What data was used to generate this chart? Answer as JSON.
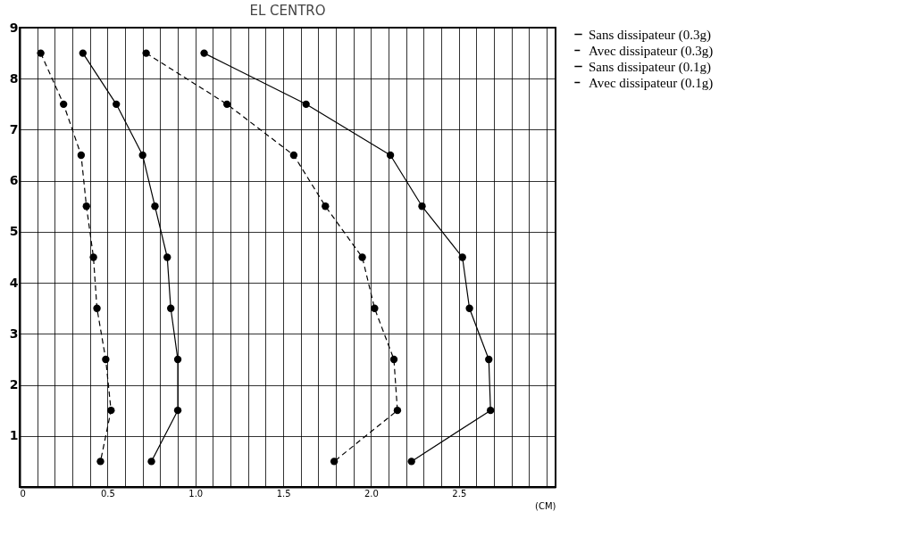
{
  "chart_data": {
    "type": "line",
    "title": "EL CENTRO",
    "xlabel": "(CM)",
    "xlim": [
      0,
      3.05
    ],
    "ylim": [
      0,
      9
    ],
    "xticks": [
      0,
      {
        "value": 0.1,
        "label": null
      },
      {
        "value": 0.2,
        "label": null
      },
      {
        "value": 0.3,
        "label": null
      },
      {
        "value": 0.4,
        "label": null
      },
      {
        "value": 0.5,
        "label": "0.5"
      },
      {
        "value": 0.6,
        "label": null
      },
      {
        "value": 0.7,
        "label": null
      },
      {
        "value": 0.8,
        "label": null
      },
      {
        "value": 0.9,
        "label": null
      },
      {
        "value": 1.0,
        "label": "1.0"
      },
      {
        "value": 1.1,
        "label": null
      },
      {
        "value": 1.2,
        "label": null
      },
      {
        "value": 1.3,
        "label": null
      },
      {
        "value": 1.4,
        "label": null
      },
      {
        "value": 1.5,
        "label": "1.5"
      },
      {
        "value": 1.6,
        "label": null
      },
      {
        "value": 1.7,
        "label": null
      },
      {
        "value": 1.8,
        "label": null
      },
      {
        "value": 1.9,
        "label": null
      },
      {
        "value": 2.0,
        "label": "2.0"
      },
      {
        "value": 2.1,
        "label": null
      },
      {
        "value": 2.2,
        "label": null
      },
      {
        "value": 2.3,
        "label": null
      },
      {
        "value": 2.4,
        "label": null
      },
      {
        "value": 2.5,
        "label": "2.5"
      },
      {
        "value": 2.6,
        "label": null
      },
      {
        "value": 2.7,
        "label": null
      },
      {
        "value": 2.8,
        "label": null
      },
      {
        "value": 2.9,
        "label": null
      },
      {
        "value": 3.0,
        "label": null
      }
    ],
    "yticks": [
      1,
      2,
      3,
      4,
      5,
      6,
      7,
      8,
      9
    ],
    "grid": true,
    "legend": "right",
    "marker": "circle",
    "series": [
      {
        "name": "Sans  dissipateur (0.3g)",
        "color": "#000000",
        "line_style": "solid",
        "x": [
          1.05,
          1.63,
          2.11,
          2.29,
          2.52,
          2.56,
          2.67,
          2.68,
          2.23
        ],
        "values": [
          8.5,
          7.5,
          6.5,
          5.5,
          4.5,
          3.5,
          2.5,
          1.5,
          0.5
        ]
      },
      {
        "name": "Avec dissipateur (0.3g)",
        "color": "#000000",
        "line_style": "dashed",
        "x": [
          0.72,
          1.18,
          1.56,
          1.74,
          1.95,
          2.02,
          2.13,
          2.15,
          1.79
        ],
        "values": [
          8.5,
          7.5,
          6.5,
          5.5,
          4.5,
          3.5,
          2.5,
          1.5,
          0.5
        ]
      },
      {
        "name": "Sans  dissipateur (0.1g)",
        "color": "#000000",
        "line_style": "solid",
        "x": [
          0.36,
          0.55,
          0.7,
          0.77,
          0.84,
          0.86,
          0.9,
          0.9,
          0.75
        ],
        "values": [
          8.5,
          7.5,
          6.5,
          5.5,
          4.5,
          3.5,
          2.5,
          1.5,
          0.5
        ]
      },
      {
        "name": "Avec dissipateur (0.1g)",
        "color": "#000000",
        "line_style": "dashed",
        "x": [
          0.12,
          0.25,
          0.35,
          0.38,
          0.42,
          0.44,
          0.49,
          0.52,
          0.46
        ],
        "values": [
          8.5,
          7.5,
          6.5,
          5.5,
          4.5,
          3.5,
          2.5,
          1.5,
          0.5
        ]
      }
    ]
  }
}
